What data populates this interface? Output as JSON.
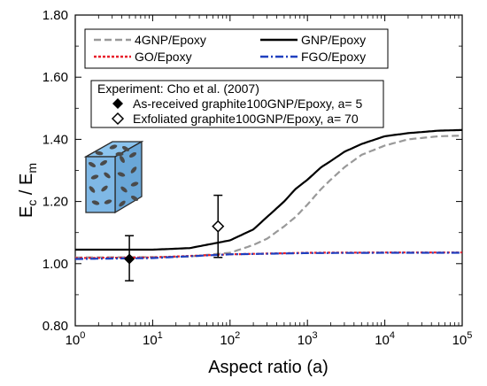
{
  "chart_data": {
    "type": "line",
    "xlabel": "Aspect ratio (a)",
    "ylabel_main": "E",
    "ylabel_sub1": "c",
    "ylabel_mid": " / E",
    "ylabel_sub2": "m",
    "x_scale": "log",
    "xlim": [
      1,
      100000
    ],
    "ylim": [
      0.8,
      1.8
    ],
    "x_ticks": [
      {
        "base": "10",
        "exp": "0",
        "value": 1
      },
      {
        "base": "10",
        "exp": "1",
        "value": 10
      },
      {
        "base": "10",
        "exp": "2",
        "value": 100
      },
      {
        "base": "10",
        "exp": "3",
        "value": 1000
      },
      {
        "base": "10",
        "exp": "4",
        "value": 10000
      },
      {
        "base": "10",
        "exp": "5",
        "value": 100000
      }
    ],
    "y_ticks": [
      {
        "label": "0.80",
        "value": 0.8
      },
      {
        "label": "1.00",
        "value": 1.0
      },
      {
        "label": "1.20",
        "value": 1.2
      },
      {
        "label": "1.40",
        "value": 1.4
      },
      {
        "label": "1.60",
        "value": 1.6
      },
      {
        "label": "1.80",
        "value": 1.8
      }
    ],
    "grid": false,
    "legend_position": "top",
    "series": [
      {
        "name": "4GNP/Epoxy",
        "color": "#999999",
        "dash": "dashed",
        "x": [
          1,
          10,
          30,
          100,
          200,
          300,
          500,
          700,
          1000,
          1500,
          2000,
          3000,
          5000,
          10000,
          20000,
          50000,
          100000
        ],
        "y": [
          1.02,
          1.021,
          1.023,
          1.035,
          1.06,
          1.08,
          1.12,
          1.15,
          1.19,
          1.24,
          1.27,
          1.31,
          1.35,
          1.38,
          1.4,
          1.41,
          1.412
        ]
      },
      {
        "name": "GNP/Epoxy",
        "color": "#000000",
        "dash": "solid",
        "x": [
          1,
          10,
          30,
          100,
          200,
          300,
          500,
          700,
          1000,
          1500,
          2000,
          3000,
          5000,
          10000,
          20000,
          50000,
          100000
        ],
        "y": [
          1.045,
          1.045,
          1.05,
          1.075,
          1.11,
          1.15,
          1.2,
          1.24,
          1.27,
          1.31,
          1.33,
          1.36,
          1.385,
          1.41,
          1.42,
          1.428,
          1.43
        ]
      },
      {
        "name": "GO/Epoxy",
        "color": "#e8202a",
        "dash": "dotted",
        "x": [
          1,
          10,
          100,
          1000,
          10000,
          100000
        ],
        "y": [
          1.018,
          1.02,
          1.03,
          1.035,
          1.036,
          1.036
        ]
      },
      {
        "name": "FGO/Epoxy",
        "color": "#1f3fbf",
        "dash": "dashdot",
        "x": [
          1,
          10,
          100,
          1000,
          10000,
          100000
        ],
        "y": [
          1.015,
          1.018,
          1.03,
          1.034,
          1.035,
          1.035
        ]
      }
    ],
    "experiment": {
      "title": "Experiment: Cho et al. (2007)",
      "points": [
        {
          "label": "As-received graphite100GNP/Epoxy, a= 5",
          "marker": "filled-diamond",
          "x": 5,
          "y": 1.015,
          "err_low": 0.945,
          "err_high": 1.09
        },
        {
          "label": "Exfoliated graphite100GNP/Epoxy, a= 70",
          "marker": "open-diamond",
          "x": 70,
          "y": 1.12,
          "err_low": 1.02,
          "err_high": 1.22
        }
      ]
    }
  },
  "colors": {
    "cube_face": "#7fb8e6",
    "cube_edge": "#2a2a2a",
    "inclusion": "#4a4a4a"
  }
}
